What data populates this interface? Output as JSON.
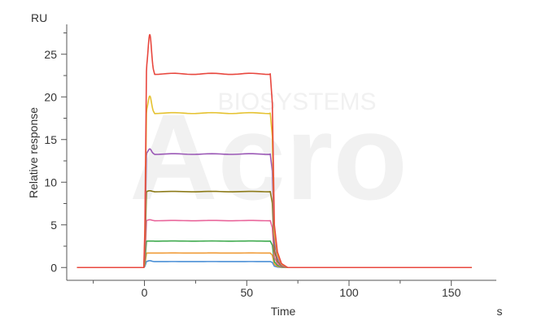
{
  "chart_data": {
    "type": "line",
    "title": "",
    "xlabel": "Time",
    "x_unit": "s",
    "ylabel": "Relative response",
    "y_unit": "RU",
    "xlim": [
      -38,
      172
    ],
    "ylim": [
      -1.5,
      28.5
    ],
    "x_ticks": [
      0,
      50,
      100,
      150
    ],
    "y_ticks": [
      0,
      5,
      10,
      15,
      20,
      25
    ],
    "grid": false,
    "legend": "none",
    "injection_start": 0,
    "injection_end": 62,
    "series": [
      {
        "color": "#e8473e",
        "spike": 27.3,
        "plateau": 22.7
      },
      {
        "color": "#e5c230",
        "spike": 20.1,
        "plateau": 18.1
      },
      {
        "color": "#9b59b6",
        "spike": 13.9,
        "plateau": 13.3
      },
      {
        "color": "#8c7a18",
        "spike": 9.0,
        "plateau": 8.9
      },
      {
        "color": "#e9649a",
        "spike": 5.6,
        "plateau": 5.5
      },
      {
        "color": "#3eaa4e",
        "spike": 3.1,
        "plateau": 3.1
      },
      {
        "color": "#f09a35",
        "spike": 1.7,
        "plateau": 1.7
      },
      {
        "color": "#4a8fd6",
        "spike": 0.8,
        "plateau": 0.7
      }
    ]
  }
}
